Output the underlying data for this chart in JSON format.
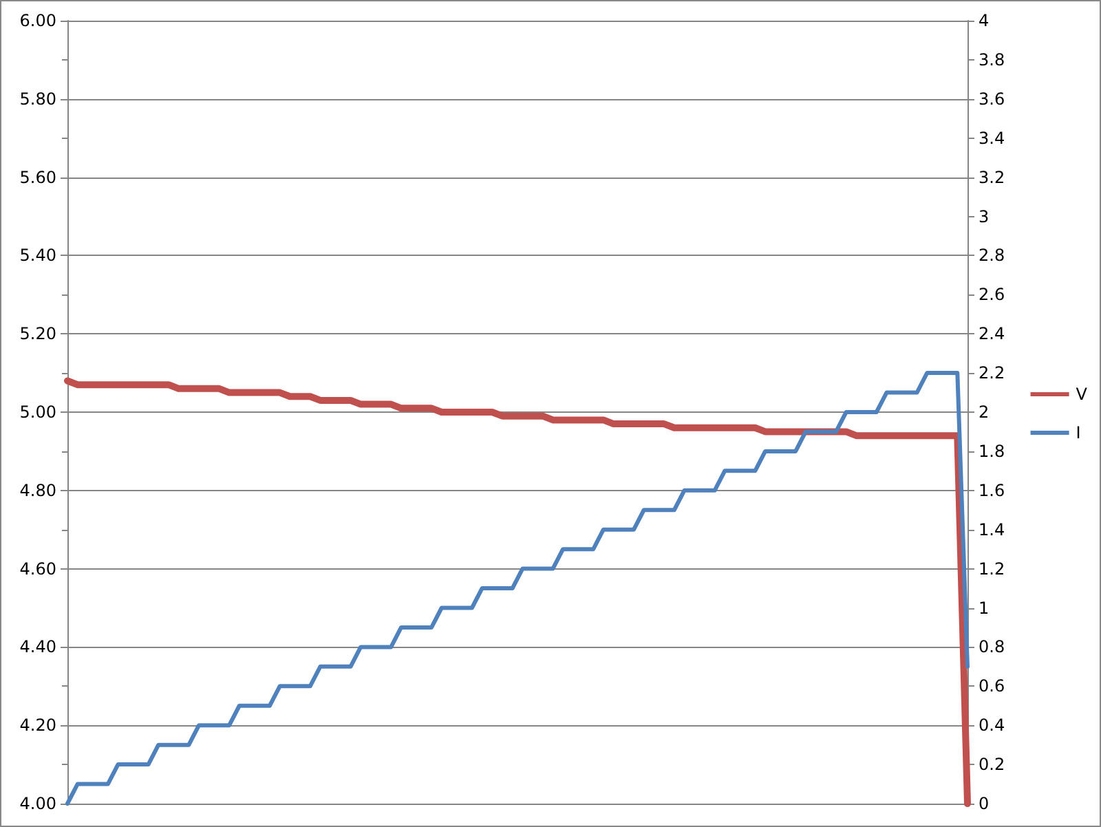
{
  "chart_data": {
    "type": "line",
    "categories": [
      null,
      null,
      null,
      null,
      null,
      null,
      null,
      null,
      null,
      null,
      null,
      null,
      null,
      null,
      null,
      null,
      null,
      null,
      null,
      null,
      null,
      null,
      null,
      null,
      null,
      null,
      null,
      null,
      null,
      null,
      null,
      null,
      null,
      null,
      null,
      null,
      null,
      null,
      null,
      null,
      null,
      null,
      null,
      null,
      null,
      null,
      null,
      null,
      null,
      null,
      null,
      null,
      null,
      null,
      null,
      null,
      null,
      null,
      null,
      null,
      null,
      null,
      null,
      null,
      null,
      null,
      null,
      null,
      null,
      null,
      null,
      null,
      null,
      null,
      null,
      null,
      null,
      null,
      null,
      null,
      null,
      null,
      null,
      null,
      null,
      null,
      null,
      null,
      null,
      null
    ],
    "series": [
      {
        "name": "V",
        "color": "#c0504d",
        "values": [
          5.08,
          5.07,
          5.07,
          5.07,
          5.07,
          5.07,
          5.07,
          5.07,
          5.07,
          5.07,
          5.07,
          5.06,
          5.06,
          5.06,
          5.06,
          5.06,
          5.05,
          5.05,
          5.05,
          5.05,
          5.05,
          5.05,
          5.04,
          5.04,
          5.04,
          5.03,
          5.03,
          5.03,
          5.03,
          5.02,
          5.02,
          5.02,
          5.02,
          5.01,
          5.01,
          5.01,
          5.01,
          5.0,
          5.0,
          5.0,
          5.0,
          5.0,
          5.0,
          4.99,
          4.99,
          4.99,
          4.99,
          4.99,
          4.98,
          4.98,
          4.98,
          4.98,
          4.98,
          4.98,
          4.97,
          4.97,
          4.97,
          4.97,
          4.97,
          4.97,
          4.96,
          4.96,
          4.96,
          4.96,
          4.96,
          4.96,
          4.96,
          4.96,
          4.96,
          4.95,
          4.95,
          4.95,
          4.95,
          4.95,
          4.95,
          4.95,
          4.95,
          4.95,
          4.94,
          4.94,
          4.94,
          4.94,
          4.94,
          4.94,
          4.94,
          4.94,
          4.94,
          4.94,
          4.94,
          4.0
        ]
      },
      {
        "name": "I",
        "color": "#4f81bd",
        "axis": "y2",
        "values": [
          0,
          0.1,
          0.1,
          0.1,
          0.1,
          0.2,
          0.2,
          0.2,
          0.2,
          0.3,
          0.3,
          0.3,
          0.3,
          0.4,
          0.4,
          0.4,
          0.4,
          0.5,
          0.5,
          0.5,
          0.5,
          0.6,
          0.6,
          0.6,
          0.6,
          0.7,
          0.7,
          0.7,
          0.7,
          0.8,
          0.8,
          0.8,
          0.8,
          0.9,
          0.9,
          0.9,
          0.9,
          1.0,
          1.0,
          1.0,
          1.0,
          1.1,
          1.1,
          1.1,
          1.1,
          1.2,
          1.2,
          1.2,
          1.2,
          1.3,
          1.3,
          1.3,
          1.3,
          1.4,
          1.4,
          1.4,
          1.4,
          1.5,
          1.5,
          1.5,
          1.5,
          1.6,
          1.6,
          1.6,
          1.6,
          1.7,
          1.7,
          1.7,
          1.7,
          1.8,
          1.8,
          1.8,
          1.8,
          1.9,
          1.9,
          1.9,
          1.9,
          2.0,
          2.0,
          2.0,
          2.0,
          2.1,
          2.1,
          2.1,
          2.1,
          2.2,
          2.2,
          2.2,
          2.2,
          0.7
        ]
      }
    ],
    "ylim": [
      4,
      6
    ],
    "yticks": [
      {
        "value": 4,
        "label": "4.00"
      },
      {
        "value": 4.2,
        "label": "4.20"
      },
      {
        "value": 4.4,
        "label": "4.40"
      },
      {
        "value": 4.6,
        "label": "4.60"
      },
      {
        "value": 4.8,
        "label": "4.80"
      },
      {
        "value": 5,
        "label": "5.00"
      },
      {
        "value": 5.2,
        "label": "5.20"
      },
      {
        "value": 5.4,
        "label": "5.40"
      },
      {
        "value": 5.6,
        "label": "5.60"
      },
      {
        "value": 5.8,
        "label": "5.80"
      },
      {
        "value": 6,
        "label": "6.00"
      }
    ],
    "y2lim": [
      0,
      4
    ],
    "y2ticks": [
      0,
      0.2,
      0.4,
      0.6,
      0.8,
      1,
      1.2,
      1.4,
      1.6,
      1.8,
      2,
      2.2,
      2.4,
      2.6,
      2.8,
      3,
      3.2,
      3.4,
      3.6,
      3.8,
      4
    ],
    "grid": "y",
    "legend": "right",
    "marker": "none"
  }
}
